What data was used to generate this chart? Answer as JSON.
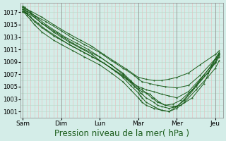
{
  "bg_color": "#d4ede8",
  "plot_bg_color": "#d4ede8",
  "line_color": "#1a5c1a",
  "grid_color_v": "#e8b8b8",
  "grid_color_h": "#b8d8c8",
  "xlabel": "Pression niveau de la mer( hPa )",
  "xlabel_fontsize": 8.5,
  "tick_labels_x": [
    "Sam",
    "Dim",
    "Lun",
    "Mar",
    "Mer",
    "Jeu"
  ],
  "tick_positions_x": [
    0,
    1,
    2,
    3,
    4,
    5
  ],
  "ylim": [
    1000,
    1018.5
  ],
  "yticks": [
    1001,
    1003,
    1005,
    1007,
    1009,
    1011,
    1013,
    1015,
    1017
  ],
  "xlim": [
    -0.05,
    5.2
  ],
  "lines": [
    {
      "x": [
        0,
        0.05,
        0.1,
        0.2,
        0.3,
        0.5,
        0.8,
        1.0,
        1.3,
        1.6,
        2.0,
        2.3,
        2.6,
        2.8,
        3.0,
        3.05,
        3.1,
        3.2,
        3.4,
        3.6,
        3.8,
        4.0,
        4.2,
        4.5,
        4.8,
        5.0,
        5.1
      ],
      "y": [
        1017.5,
        1017.2,
        1016.8,
        1016.2,
        1015.5,
        1014.5,
        1013.2,
        1012.5,
        1011.5,
        1010.5,
        1009.2,
        1008.0,
        1006.5,
        1005.2,
        1004.0,
        1003.5,
        1003.2,
        1002.5,
        1001.8,
        1001.2,
        1001.0,
        1001.5,
        1002.5,
        1004.5,
        1006.5,
        1008.0,
        1009.2
      ]
    },
    {
      "x": [
        0,
        0.05,
        0.1,
        0.2,
        0.3,
        0.5,
        0.8,
        1.0,
        1.3,
        1.6,
        2.0,
        2.3,
        2.6,
        2.8,
        3.0,
        3.05,
        3.1,
        3.2,
        3.4,
        3.6,
        3.8,
        4.0,
        4.2,
        4.5,
        4.8,
        5.0,
        5.1
      ],
      "y": [
        1017.2,
        1016.9,
        1016.5,
        1015.8,
        1015.0,
        1013.8,
        1012.5,
        1011.8,
        1010.8,
        1009.8,
        1008.5,
        1007.2,
        1005.8,
        1004.5,
        1003.2,
        1002.8,
        1002.5,
        1002.0,
        1001.5,
        1001.2,
        1001.0,
        1001.8,
        1003.0,
        1005.2,
        1007.2,
        1008.8,
        1009.8
      ]
    },
    {
      "x": [
        0,
        0.05,
        0.1,
        0.2,
        0.3,
        0.5,
        0.8,
        1.0,
        1.3,
        1.6,
        2.0,
        2.3,
        2.6,
        2.8,
        3.0,
        3.05,
        3.1,
        3.2,
        3.4,
        3.5,
        3.6,
        3.8,
        4.0,
        4.2,
        4.5,
        4.8,
        5.0,
        5.1
      ],
      "y": [
        1017.8,
        1017.5,
        1017.2,
        1016.8,
        1016.2,
        1015.2,
        1014.0,
        1013.2,
        1012.0,
        1011.0,
        1009.8,
        1008.5,
        1007.0,
        1005.8,
        1004.5,
        1004.0,
        1003.8,
        1003.2,
        1002.5,
        1002.0,
        1001.8,
        1001.5,
        1001.8,
        1002.8,
        1005.0,
        1007.2,
        1009.0,
        1010.2
      ]
    },
    {
      "x": [
        0,
        0.05,
        0.1,
        0.2,
        0.4,
        0.6,
        0.9,
        1.1,
        1.4,
        1.7,
        2.0,
        2.3,
        2.6,
        2.8,
        3.0,
        3.1,
        3.2,
        3.35,
        3.5,
        3.7,
        3.9,
        4.1,
        4.4,
        4.7,
        5.0,
        5.1
      ],
      "y": [
        1018.0,
        1017.8,
        1017.5,
        1017.0,
        1016.0,
        1015.0,
        1013.8,
        1013.0,
        1012.0,
        1011.0,
        1009.8,
        1008.5,
        1007.2,
        1006.0,
        1004.8,
        1004.5,
        1004.0,
        1003.2,
        1002.5,
        1002.0,
        1001.8,
        1002.0,
        1003.2,
        1005.5,
        1009.5,
        1010.5
      ]
    },
    {
      "x": [
        0,
        0.1,
        0.2,
        0.4,
        0.6,
        0.9,
        1.2,
        1.5,
        1.8,
        2.1,
        2.4,
        2.7,
        2.9,
        3.0,
        3.1,
        3.2,
        3.3,
        3.4,
        3.55,
        3.7,
        3.9,
        4.1,
        4.4,
        4.7,
        4.9,
        5.0,
        5.1
      ],
      "y": [
        1017.0,
        1016.8,
        1016.2,
        1015.2,
        1014.2,
        1013.0,
        1011.8,
        1010.8,
        1009.8,
        1008.8,
        1007.5,
        1006.2,
        1005.0,
        1004.5,
        1004.2,
        1004.0,
        1003.8,
        1003.2,
        1002.5,
        1002.0,
        1002.2,
        1002.8,
        1004.5,
        1006.8,
        1008.5,
        1009.5,
        1010.0
      ]
    },
    {
      "x": [
        0,
        0.1,
        0.3,
        0.5,
        0.8,
        1.0,
        1.2,
        1.5,
        1.8,
        2.0,
        2.3,
        2.6,
        2.8,
        3.0,
        3.1,
        3.2,
        3.4,
        3.6,
        3.8,
        4.0,
        4.3,
        4.6,
        5.0,
        5.1
      ],
      "y": [
        1017.2,
        1016.9,
        1016.2,
        1015.2,
        1013.8,
        1013.0,
        1012.2,
        1011.2,
        1010.2,
        1009.2,
        1008.0,
        1006.8,
        1005.8,
        1005.0,
        1004.8,
        1004.5,
        1004.2,
        1003.8,
        1003.5,
        1003.2,
        1004.2,
        1006.2,
        1009.0,
        1010.2
      ]
    },
    {
      "x": [
        0,
        0.1,
        0.3,
        0.6,
        1.0,
        1.3,
        1.6,
        2.0,
        2.3,
        2.6,
        2.9,
        3.0,
        3.1,
        3.3,
        3.5,
        3.7,
        4.0,
        4.3,
        4.6,
        5.0,
        5.1
      ],
      "y": [
        1017.5,
        1017.2,
        1016.5,
        1015.5,
        1014.0,
        1012.8,
        1011.8,
        1010.5,
        1009.2,
        1008.0,
        1006.8,
        1006.2,
        1005.8,
        1005.5,
        1005.2,
        1005.0,
        1004.8,
        1005.2,
        1006.8,
        1009.5,
        1010.5
      ]
    },
    {
      "x": [
        0,
        0.2,
        0.5,
        0.8,
        1.2,
        1.5,
        1.8,
        2.1,
        2.4,
        2.7,
        3.0,
        3.2,
        3.4,
        3.6,
        3.8,
        4.0,
        4.3,
        4.6,
        5.0,
        5.1
      ],
      "y": [
        1017.8,
        1017.2,
        1016.2,
        1015.0,
        1013.5,
        1012.5,
        1011.5,
        1010.2,
        1009.0,
        1007.8,
        1006.5,
        1006.2,
        1006.0,
        1006.0,
        1006.2,
        1006.5,
        1007.2,
        1008.5,
        1010.2,
        1010.8
      ]
    }
  ]
}
